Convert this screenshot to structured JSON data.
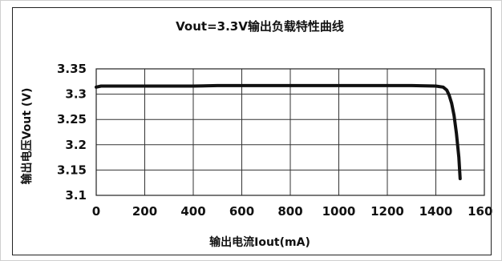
{
  "chart_data": {
    "type": "line",
    "title": "Vout=3.3V输出负载特性曲线",
    "xlabel": "输出电流Iout(mA)",
    "ylabel": "输出电压Vout (V)",
    "xlim": [
      0,
      1600
    ],
    "ylim": [
      3.1,
      3.35
    ],
    "x_ticks": [
      "0",
      "200",
      "400",
      "600",
      "800",
      "1000",
      "1200",
      "1400",
      "1600"
    ],
    "y_ticks": [
      "3.35",
      "3.3",
      "3.25",
      "3.2",
      "3.15",
      "3.1"
    ],
    "grid": true,
    "line_color": "#111111",
    "series": [
      {
        "x": [
          0,
          20,
          100,
          200,
          300,
          400,
          500,
          700,
          900,
          1100,
          1300,
          1400,
          1430,
          1445,
          1455,
          1465,
          1475,
          1485,
          1495,
          1500
        ],
        "y": [
          3.314,
          3.316,
          3.316,
          3.316,
          3.316,
          3.316,
          3.317,
          3.317,
          3.317,
          3.317,
          3.317,
          3.316,
          3.314,
          3.308,
          3.298,
          3.282,
          3.258,
          3.222,
          3.175,
          3.133
        ]
      }
    ]
  }
}
